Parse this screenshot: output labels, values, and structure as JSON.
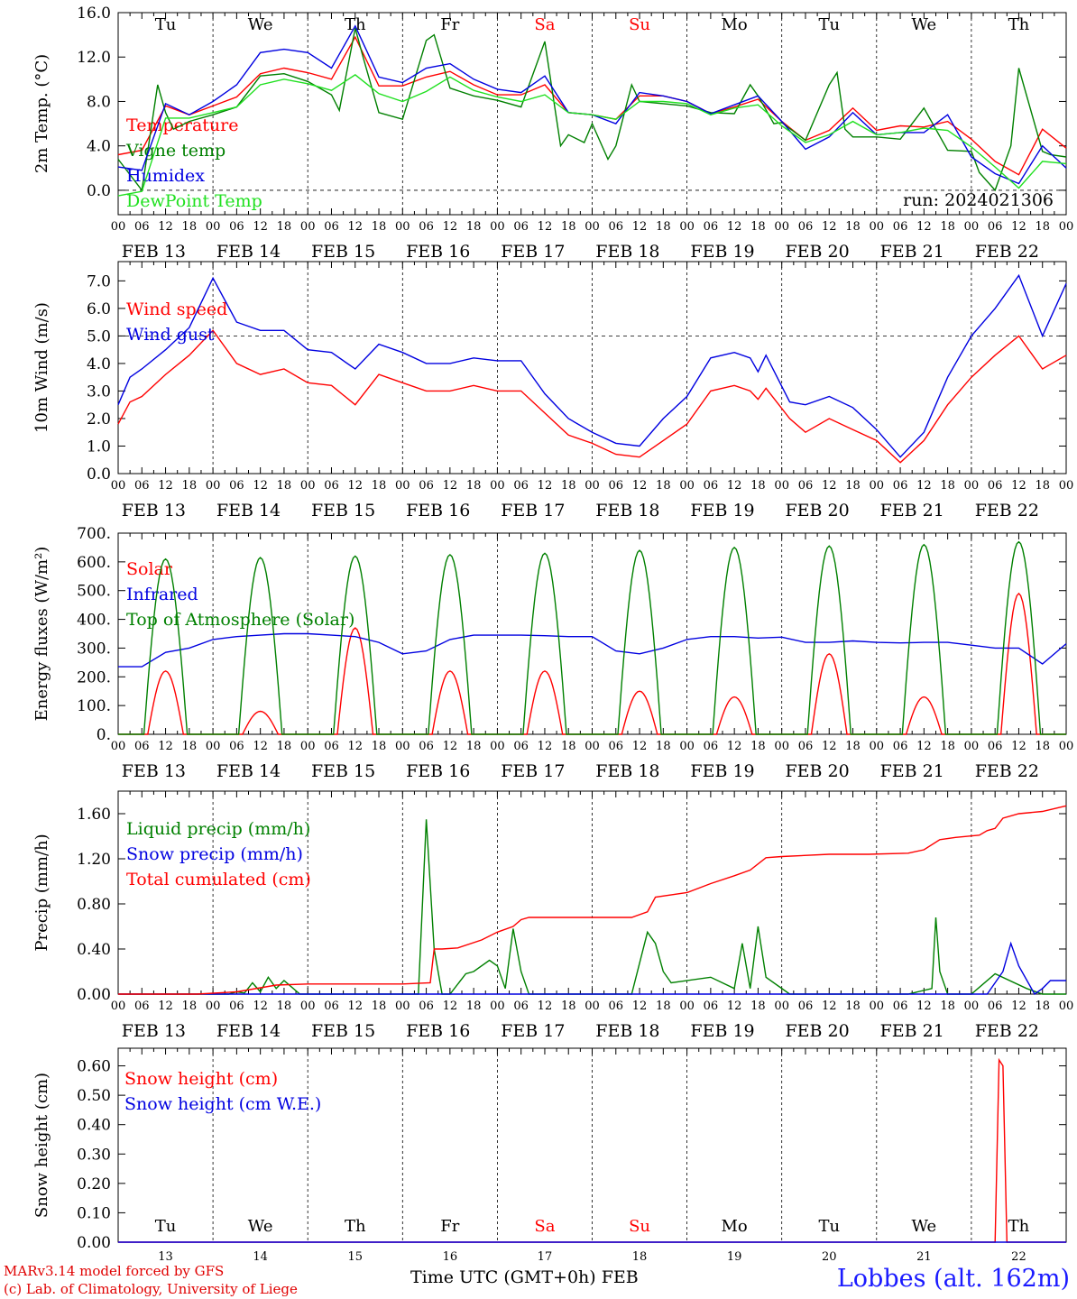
{
  "chart_data": [
    {
      "panel": "temperature",
      "type": "line",
      "ylabel": "2m Temp. (°C)",
      "ylim": [
        -2.2,
        16.0
      ],
      "yticks": [
        "0.0",
        "4.0",
        "8.0",
        "12.0",
        "16.0"
      ],
      "ytick_values": [
        0,
        4,
        8,
        12,
        16
      ],
      "annotation": "run: 2024021306",
      "x_unit": "hours_since_FEB_13_00UTC",
      "series": [
        {
          "name": "Temperature",
          "color": "#ff0000",
          "x": [
            0,
            6,
            12,
            18,
            24,
            30,
            36,
            42,
            48,
            54,
            60,
            66,
            72,
            78,
            84,
            90,
            96,
            102,
            108,
            114,
            120,
            126,
            132,
            138,
            144,
            150,
            156,
            162,
            168,
            174,
            180,
            186,
            192,
            198,
            204,
            210,
            216,
            222,
            228,
            234,
            240
          ],
          "y": [
            3.2,
            3.6,
            7.6,
            6.8,
            7.6,
            8.4,
            10.5,
            11.0,
            10.6,
            10.0,
            13.8,
            9.4,
            9.4,
            10.2,
            10.7,
            9.5,
            8.6,
            8.6,
            9.5,
            7.0,
            6.8,
            6.4,
            8.5,
            8.5,
            8.0,
            6.9,
            7.5,
            8.2,
            6.2,
            4.5,
            5.4,
            7.4,
            5.4,
            5.8,
            5.7,
            6.2,
            4.6,
            2.6,
            1.4,
            5.5,
            3.8
          ]
        },
        {
          "name": "Vigne temp",
          "color": "#008000",
          "x": [
            0,
            6,
            10,
            12,
            14,
            18,
            24,
            30,
            36,
            42,
            48,
            54,
            56,
            60,
            62,
            66,
            72,
            78,
            80,
            84,
            90,
            96,
            102,
            108,
            112,
            114,
            118,
            120,
            124,
            126,
            130,
            132,
            138,
            144,
            150,
            156,
            160,
            162,
            166,
            168,
            174,
            180,
            182,
            184,
            186,
            192,
            198,
            204,
            210,
            216,
            218,
            222,
            226,
            228,
            234,
            236,
            240
          ],
          "y": [
            2.8,
            0.0,
            9.5,
            7.0,
            5.5,
            6.2,
            6.8,
            7.5,
            10.3,
            10.5,
            9.8,
            8.6,
            7.2,
            14.6,
            12.0,
            7.0,
            6.4,
            13.5,
            14.0,
            9.2,
            8.5,
            8.1,
            7.5,
            13.4,
            4.0,
            5.0,
            4.3,
            6.0,
            2.8,
            4.0,
            9.5,
            8.0,
            7.8,
            7.6,
            7.0,
            6.9,
            9.5,
            8.5,
            6.0,
            6.1,
            4.5,
            9.5,
            10.6,
            5.5,
            4.8,
            4.8,
            4.6,
            7.4,
            3.6,
            3.5,
            1.6,
            0.0,
            4.0,
            11.0,
            3.5,
            3.2,
            3.0
          ]
        },
        {
          "name": "Humidex",
          "color": "#0000e0",
          "x": [
            0,
            6,
            12,
            18,
            24,
            30,
            36,
            42,
            48,
            54,
            60,
            66,
            72,
            78,
            84,
            90,
            96,
            102,
            108,
            114,
            120,
            126,
            132,
            138,
            144,
            150,
            156,
            162,
            168,
            174,
            180,
            186,
            192,
            198,
            204,
            210,
            216,
            222,
            228,
            234,
            240
          ],
          "y": [
            2.1,
            1.8,
            7.8,
            6.8,
            8.0,
            9.5,
            12.4,
            12.7,
            12.4,
            11.0,
            14.8,
            10.2,
            9.7,
            11.0,
            11.4,
            10.0,
            9.1,
            8.8,
            10.3,
            7.0,
            6.8,
            6.0,
            8.8,
            8.5,
            8.0,
            6.9,
            7.7,
            8.5,
            6.2,
            3.7,
            4.8,
            7.0,
            5.0,
            5.2,
            5.2,
            6.8,
            3.0,
            1.5,
            0.6,
            4.0,
            2.0
          ]
        },
        {
          "name": "DewPoint Temp",
          "color": "#20e020",
          "x": [
            0,
            6,
            12,
            18,
            24,
            30,
            36,
            42,
            48,
            54,
            60,
            66,
            72,
            78,
            84,
            90,
            96,
            102,
            108,
            114,
            120,
            126,
            132,
            138,
            144,
            150,
            156,
            162,
            168,
            174,
            180,
            186,
            192,
            198,
            204,
            210,
            216,
            222,
            228,
            234,
            240
          ],
          "y": [
            -0.5,
            -0.1,
            6.5,
            6.5,
            7.0,
            7.5,
            9.5,
            10.0,
            9.6,
            9.0,
            10.4,
            8.7,
            8.0,
            8.9,
            10.2,
            9.0,
            8.4,
            8.0,
            8.6,
            7.0,
            6.8,
            6.4,
            8.0,
            8.0,
            7.8,
            6.8,
            7.4,
            7.7,
            5.8,
            4.3,
            5.0,
            6.2,
            5.0,
            5.2,
            5.6,
            5.4,
            3.9,
            2.1,
            0.2,
            2.6,
            2.4
          ]
        }
      ]
    },
    {
      "panel": "wind",
      "type": "line",
      "ylabel": "10m Wind (m/s)",
      "ylim": [
        0.0,
        7.7
      ],
      "yticks": [
        "0.0",
        "1.0",
        "2.0",
        "3.0",
        "4.0",
        "5.0",
        "6.0",
        "7.0"
      ],
      "ytick_values": [
        0,
        1,
        2,
        3,
        4,
        5,
        6,
        7
      ],
      "dashed_line_at": 5.0,
      "x_unit": "hours_since_FEB_13_00UTC",
      "series": [
        {
          "name": "Wind speed",
          "color": "#ff0000",
          "x": [
            0,
            3,
            6,
            12,
            18,
            24,
            30,
            36,
            42,
            48,
            54,
            60,
            66,
            72,
            78,
            84,
            90,
            96,
            102,
            108,
            114,
            120,
            126,
            132,
            138,
            144,
            150,
            156,
            160,
            162,
            164,
            170,
            174,
            180,
            186,
            192,
            198,
            204,
            210,
            216,
            222,
            228,
            234,
            240
          ],
          "y": [
            1.8,
            2.6,
            2.8,
            3.6,
            4.3,
            5.2,
            4.0,
            3.6,
            3.8,
            3.3,
            3.2,
            2.5,
            3.6,
            3.3,
            3.0,
            3.0,
            3.2,
            3.0,
            3.0,
            2.2,
            1.4,
            1.1,
            0.7,
            0.6,
            1.2,
            1.8,
            3.0,
            3.2,
            3.0,
            2.7,
            3.1,
            2.0,
            1.5,
            2.0,
            1.6,
            1.2,
            0.4,
            1.2,
            2.5,
            3.5,
            4.3,
            5.0,
            3.8,
            4.3
          ]
        },
        {
          "name": "Wind gust",
          "color": "#0000e0",
          "x": [
            0,
            3,
            6,
            12,
            18,
            24,
            30,
            36,
            42,
            48,
            54,
            60,
            66,
            72,
            78,
            84,
            90,
            96,
            102,
            108,
            114,
            120,
            126,
            132,
            138,
            144,
            150,
            156,
            160,
            162,
            164,
            170,
            174,
            180,
            186,
            192,
            198,
            204,
            210,
            216,
            222,
            228,
            234,
            240
          ],
          "y": [
            2.5,
            3.5,
            3.8,
            4.5,
            5.3,
            7.1,
            5.5,
            5.2,
            5.2,
            4.5,
            4.4,
            3.8,
            4.7,
            4.4,
            4.0,
            4.0,
            4.2,
            4.1,
            4.1,
            2.9,
            2.0,
            1.5,
            1.1,
            1.0,
            2.0,
            2.8,
            4.2,
            4.4,
            4.2,
            3.7,
            4.3,
            2.6,
            2.5,
            2.8,
            2.4,
            1.6,
            0.6,
            1.5,
            3.5,
            5.0,
            6.0,
            7.2,
            5.0,
            6.9
          ]
        }
      ]
    },
    {
      "panel": "energy",
      "type": "line",
      "ylabel": "Energy fluxes (W/m²)",
      "ylim": [
        0,
        700
      ],
      "yticks": [
        "0.",
        "100.",
        "200.",
        "300.",
        "400.",
        "500.",
        "600.",
        "700."
      ],
      "ytick_values": [
        0,
        100,
        200,
        300,
        400,
        500,
        600,
        700
      ],
      "x_unit": "hours_since_FEB_13_00UTC",
      "series": [
        {
          "name": "Solar",
          "color": "#ff0000",
          "peak_hour": 12,
          "daily_peaks": [
            220,
            80,
            370,
            220,
            220,
            150,
            130,
            280,
            130,
            490
          ]
        },
        {
          "name": "Infrared",
          "color": "#0000e0",
          "x": [
            0,
            6,
            12,
            18,
            24,
            30,
            36,
            42,
            48,
            54,
            60,
            66,
            72,
            78,
            84,
            90,
            96,
            102,
            108,
            114,
            120,
            126,
            132,
            138,
            144,
            150,
            156,
            162,
            168,
            174,
            180,
            186,
            192,
            198,
            204,
            210,
            216,
            222,
            228,
            234,
            240
          ],
          "y": [
            235,
            235,
            285,
            300,
            330,
            340,
            345,
            350,
            350,
            345,
            340,
            320,
            280,
            290,
            330,
            345,
            345,
            345,
            343,
            340,
            340,
            290,
            280,
            300,
            330,
            340,
            340,
            335,
            338,
            320,
            320,
            325,
            320,
            318,
            320,
            320,
            310,
            300,
            300,
            245,
            315
          ]
        },
        {
          "name": "Top of Atmosphere (Solar)",
          "color": "#008000",
          "peak_hour": 12,
          "daily_peaks": [
            610,
            615,
            620,
            625,
            630,
            640,
            650,
            655,
            660,
            670
          ]
        }
      ]
    },
    {
      "panel": "precip",
      "type": "line",
      "ylabel": "Precip (mm/h)",
      "ylim": [
        0.0,
        1.8
      ],
      "yticks": [
        "0.00",
        "0.40",
        "0.80",
        "1.20",
        "1.60"
      ],
      "ytick_values": [
        0,
        0.4,
        0.8,
        1.2,
        1.6
      ],
      "x_unit": "hours_since_FEB_13_00UTC",
      "series": [
        {
          "name": "Liquid precip (mm/h)",
          "color": "#008000",
          "x": [
            0,
            20,
            28,
            30,
            32,
            34,
            36,
            38,
            40,
            42,
            46,
            72,
            76,
            78,
            80,
            82,
            84,
            88,
            90,
            94,
            96,
            98,
            100,
            102,
            104,
            110,
            130,
            134,
            136,
            138,
            140,
            150,
            156,
            158,
            160,
            162,
            164,
            170,
            174,
            180,
            200,
            206,
            207,
            208,
            210,
            216,
            222,
            230,
            234,
            240
          ],
          "y": [
            0,
            0,
            0,
            0.02,
            0.01,
            0.1,
            0.02,
            0.15,
            0.05,
            0.12,
            0,
            0,
            0,
            1.55,
            0.4,
            0,
            0,
            0.18,
            0.2,
            0.3,
            0.25,
            0.05,
            0.58,
            0.2,
            0,
            0,
            0,
            0.55,
            0.45,
            0.2,
            0.1,
            0.15,
            0.05,
            0.45,
            0.05,
            0.6,
            0.15,
            0,
            0,
            0,
            0,
            0.05,
            0.68,
            0.2,
            0,
            0,
            0.18,
            0.05,
            0,
            0
          ]
        },
        {
          "name": "Snow precip (mm/h)",
          "color": "#0000e0",
          "x": [
            0,
            220,
            224,
            226,
            228,
            232,
            234,
            236,
            240
          ],
          "y": [
            0,
            0,
            0.2,
            0.45,
            0.25,
            0,
            0.05,
            0.12,
            0.12
          ]
        },
        {
          "name": "Total cumulated (cm)",
          "color": "#ff0000",
          "x": [
            0,
            20,
            30,
            40,
            48,
            60,
            72,
            79,
            80,
            82,
            86,
            92,
            96,
            100,
            102,
            104,
            110,
            120,
            130,
            134,
            136,
            144,
            150,
            156,
            160,
            164,
            168,
            180,
            190,
            200,
            204,
            208,
            212,
            218,
            220,
            222,
            224,
            228,
            234,
            240
          ],
          "y": [
            0,
            0,
            0.02,
            0.08,
            0.09,
            0.09,
            0.09,
            0.1,
            0.4,
            0.4,
            0.41,
            0.48,
            0.55,
            0.6,
            0.66,
            0.68,
            0.68,
            0.68,
            0.68,
            0.73,
            0.86,
            0.9,
            0.98,
            1.05,
            1.1,
            1.21,
            1.22,
            1.24,
            1.24,
            1.25,
            1.28,
            1.37,
            1.39,
            1.41,
            1.45,
            1.47,
            1.56,
            1.6,
            1.62,
            1.67
          ]
        }
      ]
    },
    {
      "panel": "snow",
      "type": "line",
      "ylabel": "Snow height (cm)",
      "ylim": [
        0.0,
        0.66
      ],
      "yticks": [
        "0.00",
        "0.10",
        "0.20",
        "0.30",
        "0.40",
        "0.50",
        "0.60"
      ],
      "ytick_values": [
        0,
        0.1,
        0.2,
        0.3,
        0.4,
        0.5,
        0.6
      ],
      "x_unit": "hours_since_FEB_13_00UTC",
      "series": [
        {
          "name": "Snow height (cm)",
          "color": "#ff0000",
          "x": [
            0,
            222,
            223,
            224,
            225,
            240
          ],
          "y": [
            0,
            0,
            0.62,
            0.6,
            0,
            0
          ]
        },
        {
          "name": "Snow height (cm W.E.)",
          "color": "#0000e0",
          "x": [
            0,
            240
          ],
          "y": [
            0,
            0
          ]
        }
      ]
    }
  ],
  "axis": {
    "hour_ticks": [
      "00",
      "06",
      "12",
      "18"
    ],
    "end_tick": "00",
    "date_labels": [
      "FEB 13",
      "FEB 14",
      "FEB 15",
      "FEB 16",
      "FEB 17",
      "FEB 18",
      "FEB 19",
      "FEB 20",
      "FEB 21",
      "FEB 22"
    ],
    "weekdays": [
      "Tu",
      "We",
      "Th",
      "Fr",
      "Sa",
      "Su",
      "Mo",
      "Tu",
      "We",
      "Th"
    ],
    "weekend_color": "#ff0000",
    "day_numbers": [
      "13",
      "14",
      "15",
      "16",
      "17",
      "18",
      "19",
      "20",
      "21",
      "22"
    ]
  },
  "footer": {
    "credit_line1": "MARv3.14 model forced by GFS",
    "credit_line2": "(c) Lab. of Climatology, University of Liege",
    "xlabel": "Time UTC (GMT+0h) FEB",
    "station": "Lobbes (alt. 162m)"
  }
}
